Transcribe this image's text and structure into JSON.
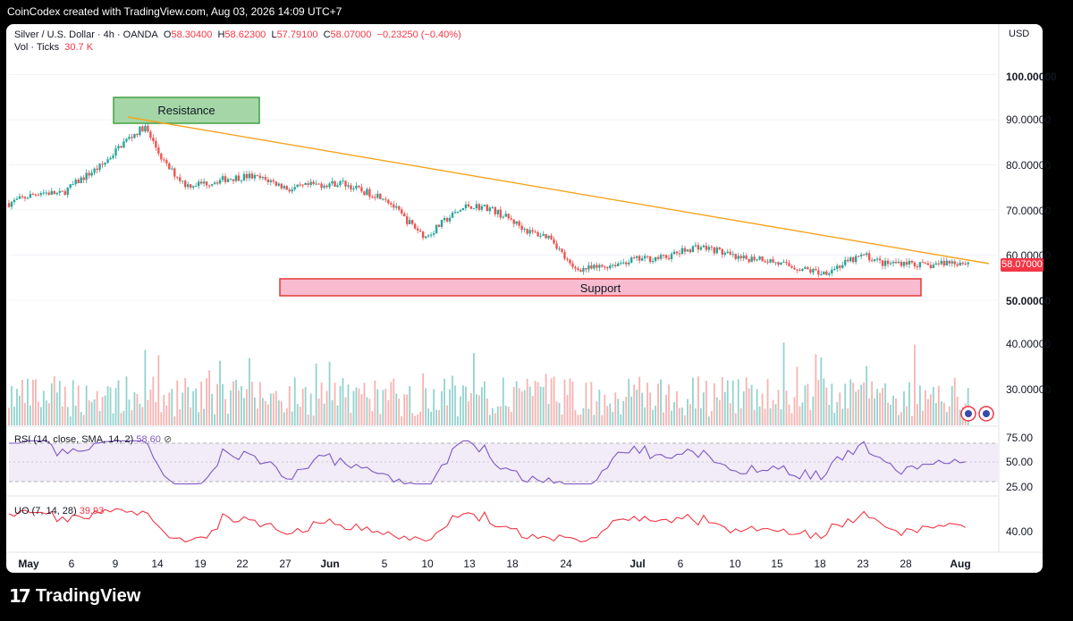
{
  "header": {
    "attribution": "CoinCodex created with TradingView.com, Aug 03, 2026 14:09 UTC+7"
  },
  "legend": {
    "symbol": "Silver / U.S. Dollar · 4h · OANDA",
    "open_label": "O",
    "open": "58.30400",
    "high_label": "H",
    "high": "58.62300",
    "low_label": "L",
    "low": "57.79100",
    "close_label": "C",
    "close": "58.07000",
    "change": "−0.23250 (−0.40%)",
    "vol_label": "Vol · Ticks",
    "vol": "30.7 K"
  },
  "currency": "USD",
  "price_tag": "58.07000",
  "annotations": {
    "resistance": "Resistance",
    "support": "Support"
  },
  "price_axis": [
    "100.00000",
    "90.00000",
    "80.00000",
    "70.00000",
    "60.00000",
    "50.00000",
    "40.00000",
    "30.00000"
  ],
  "rsi": {
    "label": "RSI (14, close, SMA, 14, 2)",
    "value": "58.60",
    "ticks": [
      "75.00",
      "50.00",
      "25.00"
    ]
  },
  "uo": {
    "label": "UO (7, 14, 28)",
    "value": "39.93",
    "ticks": [
      "40.00"
    ]
  },
  "x_axis": [
    "May",
    "6",
    "9",
    "14",
    "19",
    "22",
    "27",
    "Jun",
    "5",
    "10",
    "13",
    "18",
    "24",
    "Jul",
    "6",
    "10",
    "15",
    "18",
    "23",
    "28",
    "Aug"
  ],
  "colors": {
    "up": "#26a69a",
    "down": "#ef5350",
    "trend": "#f7a21b",
    "rsi": "#7e57c2",
    "uo": "#f23645",
    "resistance_fill": "#a5d6a7",
    "support_fill": "#f8bbd0"
  },
  "branding": {
    "mark": "17",
    "word": "TradingView"
  },
  "chart_data": {
    "type": "candlestick",
    "symbol": "Silver / U.S. Dollar",
    "interval": "4h",
    "ylim": [
      25,
      105
    ],
    "price_path": [
      [
        "May 1",
        71.5
      ],
      [
        "May 4",
        74
      ],
      [
        "May 6",
        73.5
      ],
      [
        "May 8",
        77
      ],
      [
        "May 10",
        80
      ],
      [
        "May 12",
        85
      ],
      [
        "May 14",
        88.5
      ],
      [
        "May 16",
        80
      ],
      [
        "May 18",
        75.5
      ],
      [
        "May 20",
        76
      ],
      [
        "May 22",
        77
      ],
      [
        "May 24",
        77.5
      ],
      [
        "May 26",
        76.5
      ],
      [
        "May 28",
        74.5
      ],
      [
        "May 30",
        75.5
      ],
      [
        "Jun 2",
        76
      ],
      [
        "Jun 4",
        74
      ],
      [
        "Jun 6",
        73
      ],
      [
        "Jun 8",
        68
      ],
      [
        "Jun 10",
        64
      ],
      [
        "Jun 12",
        68
      ],
      [
        "Jun 14",
        71
      ],
      [
        "Jun 16",
        70.5
      ],
      [
        "Jun 18",
        68
      ],
      [
        "Jun 20",
        65
      ],
      [
        "Jun 22",
        64
      ],
      [
        "Jun 24",
        57
      ],
      [
        "Jun 26",
        57
      ],
      [
        "Jun 28",
        58
      ],
      [
        "Jun 30",
        59
      ],
      [
        "Jul 3",
        59.5
      ],
      [
        "Jul 6",
        62
      ],
      [
        "Jul 8",
        61
      ],
      [
        "Jul 10",
        59
      ],
      [
        "Jul 12",
        59.5
      ],
      [
        "Jul 14",
        58
      ],
      [
        "Jul 16",
        57
      ],
      [
        "Jul 18",
        56
      ],
      [
        "Jul 20",
        58
      ],
      [
        "Jul 22",
        60
      ],
      [
        "Jul 24",
        58
      ],
      [
        "Jul 26",
        58.5
      ],
      [
        "Jul 28",
        57.5
      ],
      [
        "Jul 30",
        58.5
      ],
      [
        "Aug 1",
        58.3
      ]
    ],
    "resistance_trendline": {
      "from": [
        "May 11",
        90.3
      ],
      "to": [
        "Aug 3",
        58.7
      ]
    },
    "resistance_zone": {
      "label": "Resistance",
      "price": [
        89.5,
        95.5
      ],
      "dates": [
        "May 9",
        "May 22"
      ]
    },
    "support_zone": {
      "label": "Support",
      "price": [
        51.2,
        54.8
      ],
      "dates": [
        "May 26",
        "Jul 31"
      ]
    },
    "volume": {
      "label": "Vol · Ticks",
      "last": "30.7 K"
    },
    "rsi": {
      "label": "RSI (14, close, SMA, 14, 2)",
      "last": 58.6,
      "bands": [
        25,
        75
      ],
      "mid": 50
    },
    "uo": {
      "label": "UO (7, 14, 28)",
      "last": 39.93
    }
  }
}
